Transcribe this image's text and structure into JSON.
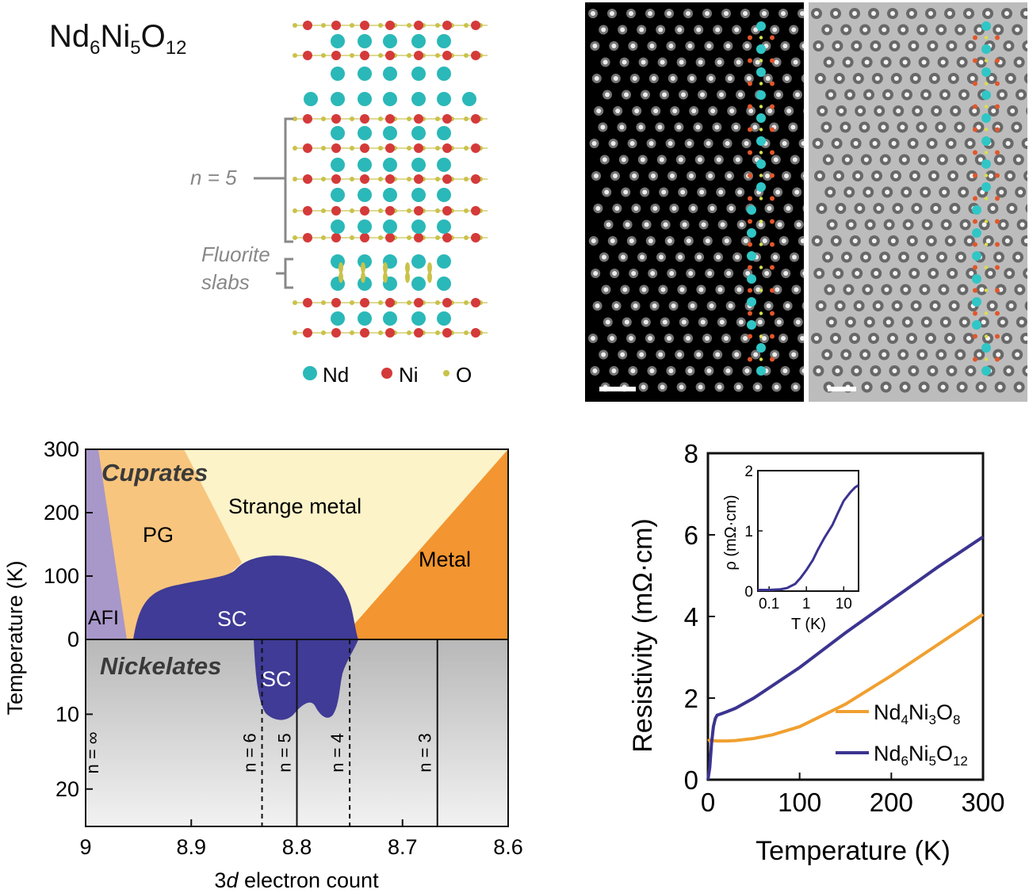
{
  "panel_a": {
    "formula": {
      "p1": "Nd",
      "s1": "6",
      "p2": "Ni",
      "s2": "5",
      "p3": "O",
      "s3": "12"
    },
    "labels": {
      "n5": "n = 5",
      "fluorite1": "Fluorite",
      "fluorite2": "slabs"
    },
    "legend": {
      "nd": "Nd",
      "ni": "Ni",
      "o": "O"
    },
    "colors": {
      "nd": "#2bb8b8",
      "ni": "#d43a3a",
      "o": "#c9c24a",
      "bracket": "#888888"
    }
  },
  "panel_b": {
    "images": [
      "HAADF-STEM image (dark field)",
      "ABF-STEM image (bright field)"
    ]
  },
  "chart_data": [
    {
      "type": "area",
      "title": "",
      "xlabel_prefix": "3",
      "xlabel_italic": "d",
      "xlabel_suffix": " electron count",
      "ylabel": "Temperature (K)",
      "xlim": [
        9.0,
        8.6
      ],
      "x_ticks": [
        "9",
        "8.9",
        "8.8",
        "8.7",
        "8.6"
      ],
      "y_ticks_upper": [
        "300",
        "200",
        "100",
        "0"
      ],
      "y_ticks_lower": [
        "10",
        "20"
      ],
      "regions": {
        "cuprates": "Cuprates",
        "nickelates": "Nickelates",
        "pg": "PG",
        "strange_metal": "Strange metal",
        "metal": "Metal",
        "afi": "AFI",
        "sc_cuprate": "SC",
        "sc_nickelate": "SC"
      },
      "n_lines": [
        {
          "label": "n = ∞",
          "x": 9.0,
          "style": "none"
        },
        {
          "label": "n = 6",
          "x": 8.833,
          "style": "dashed"
        },
        {
          "label": "n = 5",
          "x": 8.8,
          "style": "solid"
        },
        {
          "label": "n = 4",
          "x": 8.75,
          "style": "dashed"
        },
        {
          "label": "n = 3",
          "x": 8.667,
          "style": "solid"
        }
      ],
      "colors": {
        "afi": "#a897c9",
        "pg": "#f8c57e",
        "strange": "#fcf3c9",
        "metal": "#f39530",
        "sc": "#3f3b96"
      }
    },
    {
      "type": "line",
      "title": "",
      "xlabel": "Temperature (K)",
      "ylabel": "Resistivity (mΩ·cm)",
      "xlim": [
        0,
        300
      ],
      "ylim": [
        0,
        8
      ],
      "x_ticks": [
        "0",
        "100",
        "200",
        "300"
      ],
      "y_ticks": [
        "0",
        "2",
        "4",
        "6",
        "8"
      ],
      "series": [
        {
          "name_base": "Nd",
          "name_s1": "4",
          "name_mid": "Ni",
          "name_s2": "3",
          "name_end": "O",
          "name_s3": "8",
          "color": "#f0a030",
          "x": [
            0,
            2,
            5,
            10,
            20,
            30,
            50,
            70,
            100,
            150,
            200,
            250,
            300
          ],
          "y": [
            0.95,
            0.97,
            0.96,
            0.95,
            0.95,
            0.96,
            1.01,
            1.1,
            1.3,
            1.85,
            2.55,
            3.3,
            4.05
          ]
        },
        {
          "name_base": "Nd",
          "name_s1": "6",
          "name_mid": "Ni",
          "name_s2": "5",
          "name_end": "O",
          "name_s3": "12",
          "color": "#3b3490",
          "x": [
            0,
            2,
            4,
            6,
            8,
            10,
            15,
            20,
            30,
            50,
            100,
            150,
            200,
            250,
            300
          ],
          "y": [
            0.0,
            0.3,
            0.9,
            1.3,
            1.5,
            1.58,
            1.62,
            1.66,
            1.75,
            2.0,
            2.75,
            3.6,
            4.4,
            5.2,
            5.95
          ]
        }
      ],
      "inset": {
        "type": "line",
        "xlabel": "T (K)",
        "ylabel": "ρ (mΩ·cm)",
        "x_scale": "log",
        "xlim": [
          0.05,
          25
        ],
        "ylim": [
          0,
          2
        ],
        "x_ticks": [
          "0.1",
          "1",
          "10"
        ],
        "y_ticks": [
          "0",
          "1",
          "2"
        ],
        "x": [
          0.05,
          0.1,
          0.2,
          0.3,
          0.5,
          0.7,
          1,
          1.5,
          2,
          3,
          5,
          7,
          10,
          15,
          20,
          25
        ],
        "y": [
          0.02,
          0.02,
          0.03,
          0.05,
          0.12,
          0.22,
          0.35,
          0.52,
          0.68,
          0.88,
          1.1,
          1.3,
          1.5,
          1.64,
          1.72,
          1.76
        ]
      }
    }
  ]
}
